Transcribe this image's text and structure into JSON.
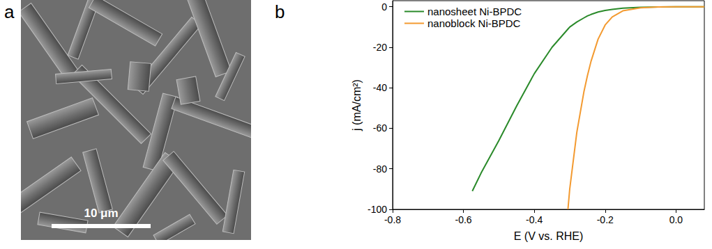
{
  "figure": {
    "panel_labels": [
      "a",
      "b"
    ],
    "micrograph": {
      "scale_bar_label": "10 μm"
    }
  },
  "chart_data": {
    "type": "line",
    "xlabel": "E (V vs. RHE)",
    "ylabel": "j (mA/cm²)",
    "x": [
      -0.575,
      -0.55,
      -0.5,
      -0.45,
      -0.4,
      -0.35,
      -0.305,
      -0.3,
      -0.28,
      -0.26,
      -0.25,
      -0.24,
      -0.22,
      -0.2,
      -0.18,
      -0.15,
      -0.1,
      -0.05,
      0,
      0.05,
      0.08
    ],
    "series": [
      {
        "name": "nanosheet Ni-BPDC",
        "color": "#2a8a2a",
        "values": [
          -91,
          -82,
          -66,
          -49,
          -33,
          -20,
          -11,
          -10,
          -7.5,
          -5.5,
          -4.5,
          -3.8,
          -2.6,
          -1.8,
          -1.3,
          -0.7,
          -0.3,
          -0.1,
          0,
          0,
          0
        ]
      },
      {
        "name": "nanoblock Ni-BPDC",
        "color": "#f39a30",
        "values": [
          null,
          null,
          null,
          null,
          null,
          null,
          -100,
          -90,
          -62,
          -42,
          -34,
          -27,
          -16,
          -9,
          -5,
          -2,
          -0.5,
          -0.1,
          0,
          0,
          0
        ]
      }
    ],
    "xlim": [
      -0.8,
      0.08
    ],
    "xticks": [
      -0.8,
      -0.6,
      -0.4,
      -0.2,
      {
        "value": 0,
        "label": "0.0"
      }
    ],
    "ylim": [
      -100,
      3
    ],
    "yticks": [
      -100,
      -80,
      -60,
      -40,
      -20,
      0
    ],
    "legend": "upper left",
    "grid": false
  }
}
